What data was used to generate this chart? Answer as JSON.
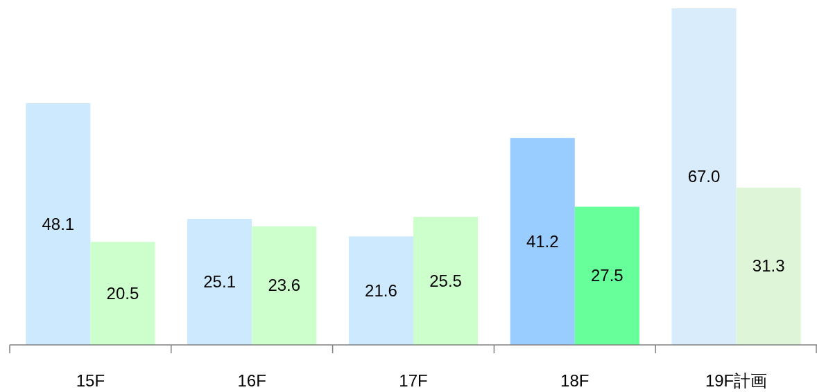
{
  "chart_data": {
    "type": "bar",
    "categories": [
      "15F",
      "16F",
      "17F",
      "18F",
      "19F計画"
    ],
    "series": [
      {
        "colors": [
          "#cce9fd",
          "#cce9fd",
          "#cce9fd",
          "#99ccff",
          "#d9ecfb"
        ],
        "values": [
          48.1,
          25.1,
          21.6,
          41.2,
          67.0
        ],
        "value_labels": [
          "48.1",
          "25.1",
          "21.6",
          "41.2",
          "67.0"
        ]
      },
      {
        "colors": [
          "#ccffcc",
          "#ccffcc",
          "#ccffcc",
          "#66ff99",
          "#dff5d8"
        ],
        "values": [
          20.5,
          23.6,
          25.5,
          27.5,
          31.3
        ],
        "value_labels": [
          "20.5",
          "23.6",
          "25.5",
          "27.5",
          "31.3"
        ]
      }
    ]
  }
}
